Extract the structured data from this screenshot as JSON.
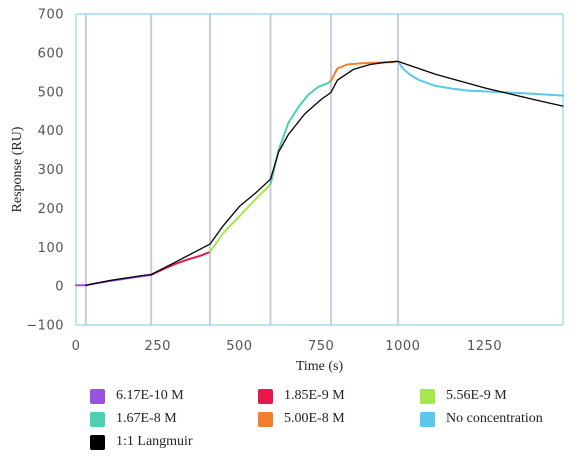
{
  "chart_data": {
    "type": "line",
    "title": "",
    "xlabel": "Time (s)",
    "ylabel": "Response (RU)",
    "xlim": [
      0,
      1490
    ],
    "ylim": [
      -100,
      700
    ],
    "xticks": [
      0,
      250,
      500,
      750,
      1000,
      1250
    ],
    "yticks": [
      -100,
      0,
      100,
      200,
      300,
      400,
      500,
      600,
      700
    ],
    "injection_markers_x": [
      30,
      230,
      410,
      595,
      780,
      985
    ],
    "grid": false,
    "legend_position": "bottom",
    "colors": {
      "axis": "#8fd8e8",
      "marker": "#c4cde0"
    },
    "series": [
      {
        "name": "6.17E-10 M",
        "color": "#9b51e0",
        "x": [
          0,
          30,
          60,
          100,
          150,
          200,
          230
        ],
        "y": [
          2,
          2,
          7,
          13,
          19,
          25,
          29
        ]
      },
      {
        "name": "1.85E-9 M",
        "color": "#e8174c",
        "x": [
          230,
          260,
          300,
          340,
          380,
          410
        ],
        "y": [
          29,
          41,
          56,
          68,
          78,
          88
        ]
      },
      {
        "name": "5.56E-9 M",
        "color": "#a4e84c",
        "x": [
          410,
          450,
          500,
          550,
          595
        ],
        "y": [
          88,
          136,
          180,
          224,
          262
        ]
      },
      {
        "name": "1.67E-8 M",
        "color": "#4ecfb0",
        "x": [
          595,
          620,
          650,
          680,
          710,
          740,
          770,
          780
        ],
        "y": [
          262,
          350,
          420,
          460,
          492,
          512,
          522,
          528
        ]
      },
      {
        "name": "5.00E-8 M",
        "color": "#f27d2c",
        "x": [
          780,
          800,
          830,
          870,
          920,
          960,
          985
        ],
        "y": [
          528,
          560,
          570,
          573,
          575,
          576,
          578
        ]
      },
      {
        "name": "No concentration",
        "color": "#5bc7ea",
        "x": [
          985,
          1000,
          1020,
          1050,
          1100,
          1150,
          1200,
          1300,
          1400,
          1490
        ],
        "y": [
          578,
          560,
          545,
          530,
          515,
          508,
          503,
          499,
          495,
          490
        ]
      },
      {
        "name": "1:1 Langmuir",
        "color": "#000000",
        "x": [
          30,
          100,
          200,
          230,
          300,
          410,
          450,
          500,
          550,
          595,
          620,
          650,
          700,
          750,
          780,
          800,
          850,
          900,
          950,
          985,
          1100,
          1250,
          1400,
          1490
        ],
        "y": [
          2,
          14,
          27,
          30,
          60,
          108,
          155,
          205,
          240,
          275,
          345,
          390,
          443,
          480,
          498,
          530,
          558,
          570,
          576,
          578,
          545,
          510,
          480,
          463
        ]
      }
    ]
  }
}
